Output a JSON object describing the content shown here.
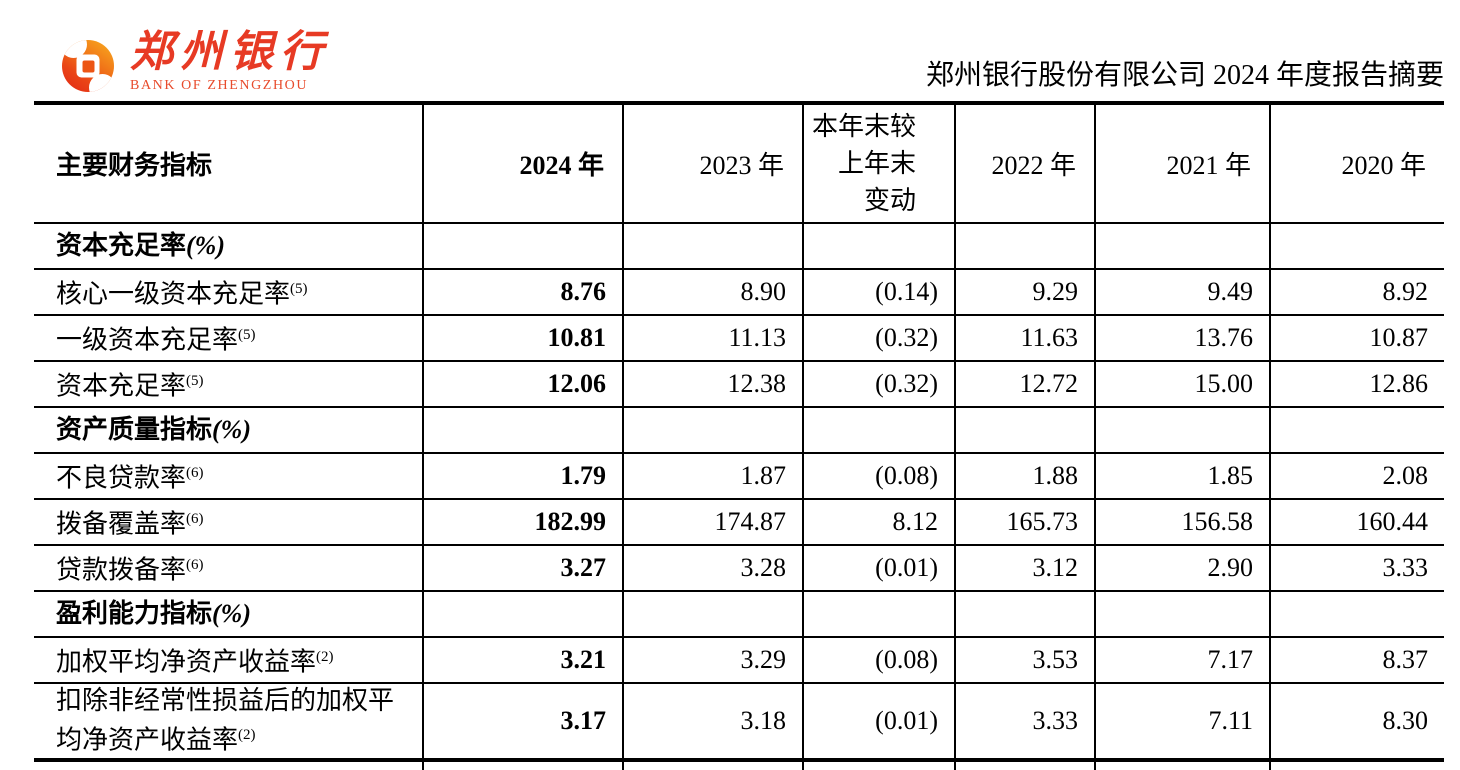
{
  "header": {
    "logo": {
      "name_cn": "郑州银行",
      "name_en": "BANK OF ZHENGZHOU"
    },
    "report_title": "郑州银行股份有限公司 2024 年度报告摘要"
  },
  "colors": {
    "brand_red": "#e73a24",
    "brand_orange": "#f7a41e",
    "text": "#000000"
  },
  "table": {
    "columns": [
      {
        "key": "indicator",
        "label": "主要财务指标"
      },
      {
        "key": "y2024",
        "label": "2024 年"
      },
      {
        "key": "y2023",
        "label": "2023 年"
      },
      {
        "key": "change",
        "lines": [
          "本年末较",
          "上年末",
          "变动"
        ]
      },
      {
        "key": "y2022",
        "label": "2022 年"
      },
      {
        "key": "y2021",
        "label": "2021 年"
      },
      {
        "key": "y2020",
        "label": "2020 年"
      }
    ],
    "rows": [
      {
        "type": "section",
        "label": "资本充足率",
        "pct": "(%)"
      },
      {
        "type": "data",
        "label": "核心一级资本充足率",
        "sup": "(5)",
        "values": [
          "8.76",
          "8.90",
          "(0.14)",
          "9.29",
          "9.49",
          "8.92"
        ]
      },
      {
        "type": "data",
        "label": "一级资本充足率",
        "sup": "(5)",
        "values": [
          "10.81",
          "11.13",
          "(0.32)",
          "11.63",
          "13.76",
          "10.87"
        ]
      },
      {
        "type": "data",
        "label": "资本充足率",
        "sup": "(5)",
        "values": [
          "12.06",
          "12.38",
          "(0.32)",
          "12.72",
          "15.00",
          "12.86"
        ]
      },
      {
        "type": "section",
        "label": "资产质量指标",
        "pct": "(%)"
      },
      {
        "type": "data",
        "label": "不良贷款率",
        "sup": "(6)",
        "values": [
          "1.79",
          "1.87",
          "(0.08)",
          "1.88",
          "1.85",
          "2.08"
        ]
      },
      {
        "type": "data",
        "label": "拨备覆盖率",
        "sup": "(6)",
        "values": [
          "182.99",
          "174.87",
          "8.12",
          "165.73",
          "156.58",
          "160.44"
        ]
      },
      {
        "type": "data",
        "label": "贷款拨备率",
        "sup": "(6)",
        "values": [
          "3.27",
          "3.28",
          "(0.01)",
          "3.12",
          "2.90",
          "3.33"
        ]
      },
      {
        "type": "section",
        "label": "盈利能力指标",
        "pct": "(%)"
      },
      {
        "type": "data",
        "label": "加权平均净资产收益率",
        "sup": "(2)",
        "values": [
          "3.21",
          "3.29",
          "(0.08)",
          "3.53",
          "7.17",
          "8.37"
        ]
      },
      {
        "type": "data",
        "tall": true,
        "label": "扣除非经常性损益后的加权平均净资产收益率",
        "sup": "(2)",
        "values": [
          "3.17",
          "3.18",
          "(0.01)",
          "3.33",
          "7.11",
          "8.30"
        ]
      }
    ]
  }
}
